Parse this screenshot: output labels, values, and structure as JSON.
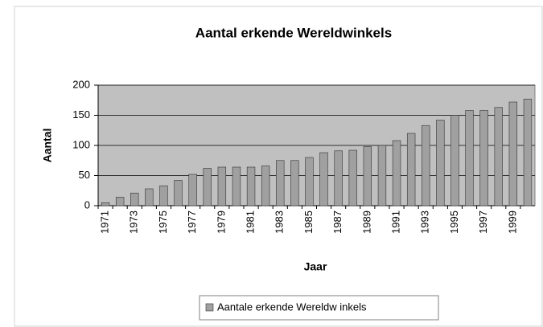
{
  "chart_data": {
    "type": "bar",
    "title": "Aantal erkende Wereldwinkels",
    "x_label": "Jaar",
    "y_label": "Aantal",
    "categories": [
      "1971",
      null,
      "1973",
      null,
      "1975",
      null,
      "1977",
      null,
      "1979",
      null,
      "1981",
      null,
      "1983",
      null,
      "1985",
      null,
      "1987",
      null,
      "1989",
      null,
      "1991",
      null,
      "1993",
      null,
      "1995",
      null,
      "1997",
      null,
      "1999",
      null
    ],
    "series": [
      {
        "name": "Aantale erkende Wereldw inkels",
        "color": "#a0a0a0",
        "values": [
          5,
          14,
          21,
          28,
          33,
          42,
          52,
          62,
          64,
          64,
          64,
          66,
          75,
          75,
          80,
          88,
          91,
          92,
          98,
          100,
          108,
          120,
          133,
          142,
          150,
          158,
          158,
          163,
          172,
          177
        ]
      }
    ],
    "ylim": [
      0,
      200
    ],
    "yticks": [
      0,
      50,
      100,
      150,
      200
    ],
    "grid": true,
    "legend": "bottom"
  }
}
